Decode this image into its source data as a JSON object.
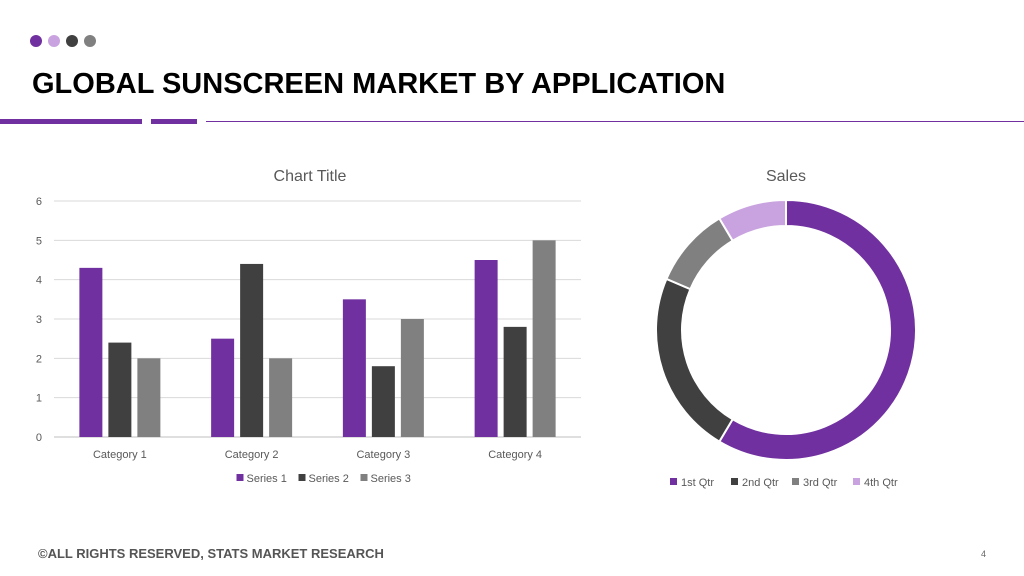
{
  "slide": {
    "title": "GLOBAL SUNSCREEN MARKET BY APPLICATION",
    "footer": "©ALL RIGHTS RESERVED, STATS MARKET RESEARCH",
    "page_number": "4",
    "dot_colors": [
      "#7030a0",
      "#c9a3e0",
      "#404040",
      "#808080"
    ],
    "accent_color": "#7030a0"
  },
  "chart_data": [
    {
      "type": "bar",
      "title": "Chart Title",
      "categories": [
        "Category 1",
        "Category 2",
        "Category 3",
        "Category 4"
      ],
      "series": [
        {
          "name": "Series 1",
          "values": [
            4.3,
            2.5,
            3.5,
            4.5
          ],
          "color": "#7030a0"
        },
        {
          "name": "Series 2",
          "values": [
            2.4,
            4.4,
            1.8,
            2.8
          ],
          "color": "#404040"
        },
        {
          "name": "Series 3",
          "values": [
            2,
            2,
            3,
            5
          ],
          "color": "#808080"
        }
      ],
      "yticks": [
        "0",
        "1",
        "2",
        "3",
        "4",
        "5",
        "6"
      ],
      "ylim": [
        0,
        6
      ],
      "grid": true,
      "legend": "bottom"
    },
    {
      "type": "pie",
      "title": "Sales",
      "labels": [
        "1st Qtr",
        "2nd Qtr",
        "3rd Qtr",
        "4th Qtr"
      ],
      "values": [
        8.2,
        3.2,
        1.4,
        1.2
      ],
      "colors": [
        "#7030a0",
        "#404040",
        "#808080",
        "#c9a3e0"
      ],
      "legend": "bottom"
    }
  ]
}
